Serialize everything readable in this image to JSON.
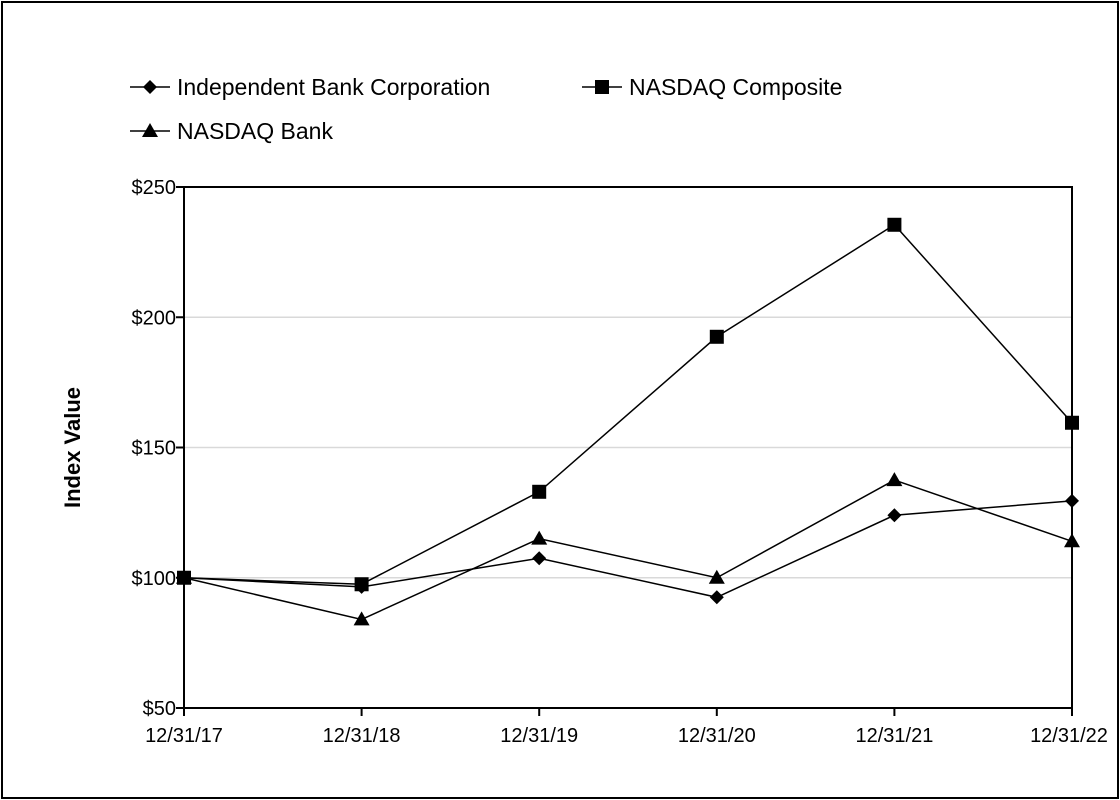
{
  "chart_data": {
    "type": "line",
    "title": "",
    "xlabel": "",
    "ylabel": "Index Value",
    "categories": [
      "12/31/17",
      "12/31/18",
      "12/31/19",
      "12/31/20",
      "12/31/21",
      "12/31/22"
    ],
    "y_ticks": [
      "$50",
      "$100",
      "$150",
      "$200",
      "$250"
    ],
    "y_tick_values": [
      50,
      100,
      150,
      200,
      250
    ],
    "ylim": [
      50,
      250
    ],
    "grid": true,
    "legend_position": "top-left",
    "series": [
      {
        "name": "Independent Bank Corporation",
        "marker": "diamond",
        "color": "#000000",
        "values": [
          100,
          96.5,
          107.5,
          92.5,
          124,
          129.5
        ]
      },
      {
        "name": "NASDAQ Composite",
        "marker": "square",
        "color": "#000000",
        "values": [
          100,
          97.5,
          133,
          192.5,
          235.5,
          159.5
        ]
      },
      {
        "name": "NASDAQ Bank",
        "marker": "triangle",
        "color": "#000000",
        "values": [
          100,
          84,
          115,
          100,
          137.5,
          114
        ]
      }
    ]
  }
}
